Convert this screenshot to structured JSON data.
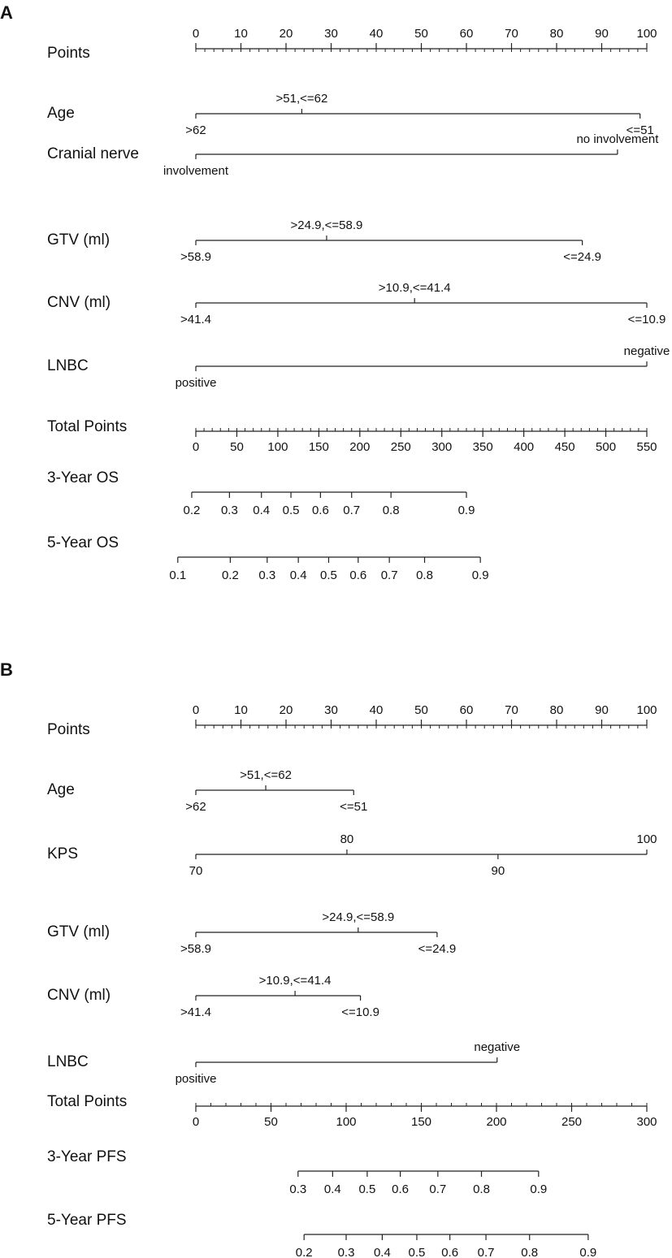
{
  "chart_data": [
    {
      "type": "nomogram",
      "panel_label": "A",
      "rows": [
        {
          "label": "Points",
          "kind": "axis",
          "ticks": [
            {
              "label": "0",
              "v": 0
            },
            {
              "label": "10",
              "v": 10
            },
            {
              "label": "20",
              "v": 20
            },
            {
              "label": "30",
              "v": 30
            },
            {
              "label": "40",
              "v": 40
            },
            {
              "label": "50",
              "v": 50
            },
            {
              "label": "60",
              "v": 60
            },
            {
              "label": "70",
              "v": 70
            },
            {
              "label": "80",
              "v": 80
            },
            {
              "label": "90",
              "v": 90
            },
            {
              "label": "100",
              "v": 100
            }
          ],
          "min": 0,
          "max": 100,
          "minor_step": 2,
          "label_side": "above"
        },
        {
          "label": "Age",
          "kind": "points",
          "levels": [
            {
              "label": ">62",
              "v": 0,
              "pos": "below"
            },
            {
              "label": ">51,<=62",
              "v": 23.5,
              "pos": "above"
            },
            {
              "label": "<=51",
              "v": 98.5,
              "pos": "below"
            }
          ]
        },
        {
          "label": "Cranial nerve",
          "kind": "points",
          "levels": [
            {
              "label": "involvement",
              "v": 0,
              "pos": "below"
            },
            {
              "label": "no involvement",
              "v": 93.5,
              "pos": "above"
            }
          ]
        },
        {
          "label": "GTV (ml)",
          "kind": "points",
          "levels": [
            {
              "label": ">58.9",
              "v": 0,
              "pos": "below"
            },
            {
              "label": ">24.9,<=58.9",
              "v": 29,
              "pos": "above"
            },
            {
              "label": "<=24.9",
              "v": 85.7,
              "pos": "below"
            }
          ]
        },
        {
          "label": "CNV (ml)",
          "kind": "points",
          "levels": [
            {
              "label": ">41.4",
              "v": 0,
              "pos": "below"
            },
            {
              "label": ">10.9,<=41.4",
              "v": 48.5,
              "pos": "above"
            },
            {
              "label": "<=10.9",
              "v": 100,
              "pos": "below"
            }
          ]
        },
        {
          "label": "LNBC",
          "kind": "points",
          "levels": [
            {
              "label": "positive",
              "v": 0,
              "pos": "below"
            },
            {
              "label": "negative",
              "v": 100,
              "pos": "above"
            }
          ]
        },
        {
          "label": "Total Points",
          "kind": "axis",
          "ticks": [
            {
              "label": "0",
              "v": 0
            },
            {
              "label": "50",
              "v": 50
            },
            {
              "label": "100",
              "v": 100
            },
            {
              "label": "150",
              "v": 150
            },
            {
              "label": "200",
              "v": 200
            },
            {
              "label": "250",
              "v": 250
            },
            {
              "label": "300",
              "v": 300
            },
            {
              "label": "350",
              "v": 350
            },
            {
              "label": "400",
              "v": 400
            },
            {
              "label": "450",
              "v": 450
            },
            {
              "label": "500",
              "v": 500
            },
            {
              "label": "550",
              "v": 550
            }
          ],
          "min": 0,
          "max": 550,
          "minor_step": 10,
          "label_side": "below"
        },
        {
          "label": "3-Year OS",
          "kind": "prob",
          "line_from": -5,
          "line_to": 330,
          "ticks": [
            {
              "label": "0.2",
              "v": -5
            },
            {
              "label": "0.3",
              "v": 41
            },
            {
              "label": "0.4",
              "v": 80
            },
            {
              "label": "0.5",
              "v": 116
            },
            {
              "label": "0.6",
              "v": 152
            },
            {
              "label": "0.7",
              "v": 190
            },
            {
              "label": "0.8",
              "v": 238
            },
            {
              "label": "0.9",
              "v": 330
            }
          ]
        },
        {
          "label": "5-Year OS",
          "kind": "prob",
          "line_from": -22,
          "line_to": 347,
          "ticks": [
            {
              "label": "0.1",
              "v": -22
            },
            {
              "label": "0.2",
              "v": 42
            },
            {
              "label": "0.3",
              "v": 87
            },
            {
              "label": "0.4",
              "v": 125
            },
            {
              "label": "0.5",
              "v": 162
            },
            {
              "label": "0.6",
              "v": 198
            },
            {
              "label": "0.7",
              "v": 236
            },
            {
              "label": "0.8",
              "v": 279
            },
            {
              "label": "0.9",
              "v": 347
            }
          ]
        }
      ]
    },
    {
      "type": "nomogram",
      "panel_label": "B",
      "rows": [
        {
          "label": "Points",
          "kind": "axis",
          "ticks": [
            {
              "label": "0",
              "v": 0
            },
            {
              "label": "10",
              "v": 10
            },
            {
              "label": "20",
              "v": 20
            },
            {
              "label": "30",
              "v": 30
            },
            {
              "label": "40",
              "v": 40
            },
            {
              "label": "50",
              "v": 50
            },
            {
              "label": "60",
              "v": 60
            },
            {
              "label": "70",
              "v": 70
            },
            {
              "label": "80",
              "v": 80
            },
            {
              "label": "90",
              "v": 90
            },
            {
              "label": "100",
              "v": 100
            }
          ],
          "min": 0,
          "max": 100,
          "minor_step": 2,
          "label_side": "above"
        },
        {
          "label": "Age",
          "kind": "points",
          "levels": [
            {
              "label": ">62",
              "v": 0,
              "pos": "below"
            },
            {
              "label": ">51,<=62",
              "v": 15.5,
              "pos": "above"
            },
            {
              "label": "<=51",
              "v": 35,
              "pos": "below"
            }
          ]
        },
        {
          "label": "KPS",
          "kind": "points",
          "levels": [
            {
              "label": "70",
              "v": 0,
              "pos": "below"
            },
            {
              "label": "80",
              "v": 33.5,
              "pos": "above"
            },
            {
              "label": "90",
              "v": 67,
              "pos": "below"
            },
            {
              "label": "100",
              "v": 100,
              "pos": "above"
            }
          ]
        },
        {
          "label": "GTV (ml)",
          "kind": "points",
          "levels": [
            {
              "label": ">58.9",
              "v": 0,
              "pos": "below"
            },
            {
              "label": ">24.9,<=58.9",
              "v": 36,
              "pos": "above"
            },
            {
              "label": "<=24.9",
              "v": 53.5,
              "pos": "below"
            }
          ]
        },
        {
          "label": "CNV (ml)",
          "kind": "points",
          "levels": [
            {
              "label": ">41.4",
              "v": 0,
              "pos": "below"
            },
            {
              "label": ">10.9,<=41.4",
              "v": 22,
              "pos": "above"
            },
            {
              "label": "<=10.9",
              "v": 36.5,
              "pos": "below"
            }
          ]
        },
        {
          "label": "LNBC",
          "kind": "points",
          "levels": [
            {
              "label": "positive",
              "v": 0,
              "pos": "below"
            },
            {
              "label": "negative",
              "v": 66.8,
              "pos": "above"
            }
          ]
        },
        {
          "label": "Total Points",
          "kind": "axis",
          "ticks": [
            {
              "label": "0",
              "v": 0
            },
            {
              "label": "50",
              "v": 50
            },
            {
              "label": "100",
              "v": 100
            },
            {
              "label": "150",
              "v": 150
            },
            {
              "label": "200",
              "v": 200
            },
            {
              "label": "250",
              "v": 250
            },
            {
              "label": "300",
              "v": 300
            }
          ],
          "min": 0,
          "max": 300,
          "minor_step": 10,
          "label_side": "below"
        },
        {
          "label": "3-Year PFS",
          "kind": "prob",
          "line_from": 68,
          "line_to": 228,
          "ticks": [
            {
              "label": "0.3",
              "v": 68
            },
            {
              "label": "0.4",
              "v": 91
            },
            {
              "label": "0.5",
              "v": 114
            },
            {
              "label": "0.6",
              "v": 136
            },
            {
              "label": "0.7",
              "v": 161
            },
            {
              "label": "0.8",
              "v": 190
            },
            {
              "label": "0.9",
              "v": 228
            }
          ]
        },
        {
          "label": "5-Year PFS",
          "kind": "prob",
          "line_from": 72,
          "line_to": 261,
          "ticks": [
            {
              "label": "0.2",
              "v": 72
            },
            {
              "label": "0.3",
              "v": 100
            },
            {
              "label": "0.4",
              "v": 124
            },
            {
              "label": "0.5",
              "v": 147
            },
            {
              "label": "0.6",
              "v": 169
            },
            {
              "label": "0.7",
              "v": 193
            },
            {
              "label": "0.8",
              "v": 222
            },
            {
              "label": "0.9",
              "v": 261
            }
          ]
        }
      ]
    }
  ]
}
